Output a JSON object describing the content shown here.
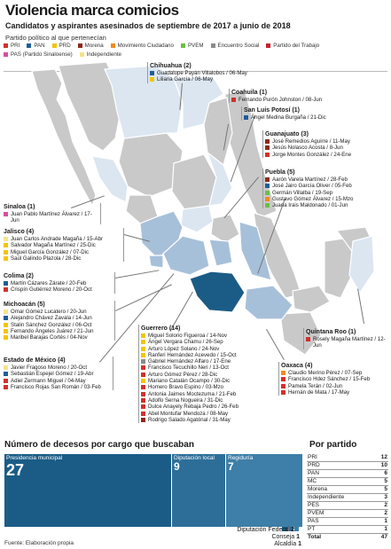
{
  "header": {
    "title": "Violencia marca comicios",
    "subtitle": "Candidatos y aspirantes asesinados de septiembre de 2017 a junio de 2018",
    "legend_heading": "Partido político al que pertenecían"
  },
  "legend": [
    {
      "label": "PRI",
      "color": "#d0312d"
    },
    {
      "label": "PAN",
      "color": "#1f5c99"
    },
    {
      "label": "PRD",
      "color": "#f2c500"
    },
    {
      "label": "Morena",
      "color": "#8b2a1b"
    },
    {
      "label": "Movimiento Ciudadano",
      "color": "#f08a1c"
    },
    {
      "label": "PVEM",
      "color": "#6abf45"
    },
    {
      "label": "Encuentro Social",
      "color": "#8a8a8a"
    },
    {
      "label": "Partido del Trabajo",
      "color": "#c8202b"
    },
    {
      "label": "PAS (Partido Sinaloense)",
      "color": "#d94da0"
    },
    {
      "label": "Independiente",
      "color": "#f5e38a"
    }
  ],
  "states": [
    {
      "name": "Chihuahua (2)",
      "people": [
        {
          "text": "Guadalupe Payán Villalobos / 06-May",
          "color": "#1f5c99"
        },
        {
          "text": "Liliana García / 06-May",
          "color": "#f2c500"
        }
      ]
    },
    {
      "name": "Coahuila (1)",
      "people": [
        {
          "text": "Fernando Purón Johnston / 08-Jun",
          "color": "#d0312d"
        }
      ]
    },
    {
      "name": "San Luis Potosí (1)",
      "people": [
        {
          "text": "Ángel Medina Burgaña / 21-Dic",
          "color": "#1f5c99"
        }
      ]
    },
    {
      "name": "Guanajuato (3)",
      "people": [
        {
          "text": "José Remedios Aguirre / 11-May",
          "color": "#8b2a1b"
        },
        {
          "text": "Jesús Nolasco Acosta / 8-Jun",
          "color": "#8b2a1b"
        },
        {
          "text": "Jorge Montes González / 24-Ene",
          "color": "#d0312d"
        }
      ]
    },
    {
      "name": "Puebla (5)",
      "people": [
        {
          "text": "Aarón Varela Martínez / 28-Feb",
          "color": "#8b2a1b"
        },
        {
          "text": "José Jairo García Oliver / 05-Feb",
          "color": "#1f5c99"
        },
        {
          "text": "Germán Villalba / 19-Sep",
          "color": "#6abf45"
        },
        {
          "text": "Gustavo Gómez Álvarez / 15-Mzo",
          "color": "#f08a1c"
        },
        {
          "text": "Juana Irais Maldonado / 01-Jun",
          "color": "#6abf45"
        }
      ]
    },
    {
      "name": "Sinaloa (1)",
      "people": [
        {
          "text": "Juan Pablo Martínez Álvarez / 17-Jun",
          "color": "#d94da0"
        }
      ]
    },
    {
      "name": "Jalisco (4)",
      "people": [
        {
          "text": "Juan Carlos Andrade Magaña / 15-Abr",
          "color": "#f5e38a"
        },
        {
          "text": "Salvador Magaña Martínez / 25-Dic",
          "color": "#f2c500"
        },
        {
          "text": "Miguel García González / 07-Dic",
          "color": "#f2c500"
        },
        {
          "text": "Saúl Galindo Plazola / 28-Dic",
          "color": "#f2c500"
        }
      ]
    },
    {
      "name": "Colima (2)",
      "people": [
        {
          "text": "Martín Cázares Zárate / 20-Feb",
          "color": "#1f5c99"
        },
        {
          "text": "Crispín Gutiérrez Moreno / 20-Oct",
          "color": "#d0312d"
        }
      ]
    },
    {
      "name": "Michoacán (5)",
      "people": [
        {
          "text": "Omar Gómez Lucatero / 20-Jun",
          "color": "#f5e38a"
        },
        {
          "text": "Alejandro Chávez Zavala / 14-Jun",
          "color": "#1f5c99"
        },
        {
          "text": "Stalin Sánchez González / 06-Oct",
          "color": "#f2c500"
        },
        {
          "text": "Fernando Ángeles Juárez / 21-Jun",
          "color": "#f2c500"
        },
        {
          "text": "Maribel Barajas Cortés / 04-Nov",
          "color": "#f2c500"
        }
      ]
    },
    {
      "name": "Estado de México (4)",
      "people": [
        {
          "text": "Javier Fragoso Moreno / 20-Oct",
          "color": "#f5e38a"
        },
        {
          "text": "Sebastián Espejel Gómez / 19-Abr",
          "color": "#1f5c99"
        },
        {
          "text": "Adiel Zermann Miguel / 04-May",
          "color": "#d0312d"
        },
        {
          "text": "Francisco Rojas San Román / 03-Feb",
          "color": "#d0312d"
        }
      ]
    },
    {
      "name": "Guerrero (14)",
      "people": [
        {
          "text": "Miguel Solorio Figueroa / 14-Nov",
          "color": "#f2c500"
        },
        {
          "text": "Ángel Vergara Chamu / 26-Sep",
          "color": "#f2c500"
        },
        {
          "text": "Arturo López Solano / 24-Nov",
          "color": "#f2c500"
        },
        {
          "text": "Ranferi Hernández Acevedo / 15-Oct",
          "color": "#f2c500"
        },
        {
          "text": "Gabriel Hernández Alfaro / 17-Ene",
          "color": "#8a8a8a"
        },
        {
          "text": "Francisco Tecuchillo Neri / 13-Oct",
          "color": "#d0312d"
        },
        {
          "text": "Arturo Gómez Pérez / 28-Dic",
          "color": "#d0312d"
        },
        {
          "text": "Mariano Catalán Ocampo / 30-Dic",
          "color": "#f2c500"
        },
        {
          "text": "Homero Bravo Espino / 03-Mzo",
          "color": "#d0312d"
        },
        {
          "text": "Antonia Jaimes Moctezuma / 21-Feb",
          "color": "#d0312d"
        },
        {
          "text": "Adolfo Serna Nogueira / 31-Dic",
          "color": "#d0312d"
        },
        {
          "text": "Dulce Anayely Rebaja Pedro / 26-Feb",
          "color": "#d0312d"
        },
        {
          "text": "Abel Montufar Mendoza / 08-May",
          "color": "#d0312d"
        },
        {
          "text": "Rodrigo Salado Agatónal / 31-May",
          "color": "#8b2a1b"
        }
      ]
    },
    {
      "name": "Oaxaca (4)",
      "people": [
        {
          "text": "Claudio Merino Pérez / 07-Sep",
          "color": "#f08a1c"
        },
        {
          "text": "Francisco Hdez Sánchez / 15-Feb",
          "color": "#d0312d"
        },
        {
          "text": "Pamela Terán / 02-Jun",
          "color": "#d0312d"
        },
        {
          "text": "Hernán de Mata / 17-May",
          "color": "#d0312d"
        }
      ]
    },
    {
      "name": "Quintana Roo (1)",
      "people": [
        {
          "text": "Rosely Magaña Martínez / 12-Jun",
          "color": "#d0312d"
        }
      ]
    }
  ],
  "treemap": {
    "title": "Número de decesos por cargo que buscaban",
    "items": [
      {
        "label": "Presidencia municipal",
        "value": "27"
      },
      {
        "label": "Diputación local",
        "value": "9"
      },
      {
        "label": "Regiduría",
        "value": "7"
      },
      {
        "label": "Diputación Federal",
        "value": "2"
      },
      {
        "label": "Conseja",
        "value": "1"
      },
      {
        "label": "Alcaldía",
        "value": "1"
      }
    ]
  },
  "por_partido": {
    "title": "Por partido",
    "rows": [
      {
        "party": "PRI",
        "value": "12"
      },
      {
        "party": "PRD",
        "value": "10"
      },
      {
        "party": "PAN",
        "value": "6"
      },
      {
        "party": "MC",
        "value": "5"
      },
      {
        "party": "Morena",
        "value": "5"
      },
      {
        "party": "Independiente",
        "value": "3"
      },
      {
        "party": "PES",
        "value": "2"
      },
      {
        "party": "PVEM",
        "value": "2"
      },
      {
        "party": "PAS",
        "value": "1"
      },
      {
        "party": "PT",
        "value": "1"
      },
      {
        "party": "Total",
        "value": "47"
      }
    ]
  },
  "source": "Fuente: Elaboración propia"
}
